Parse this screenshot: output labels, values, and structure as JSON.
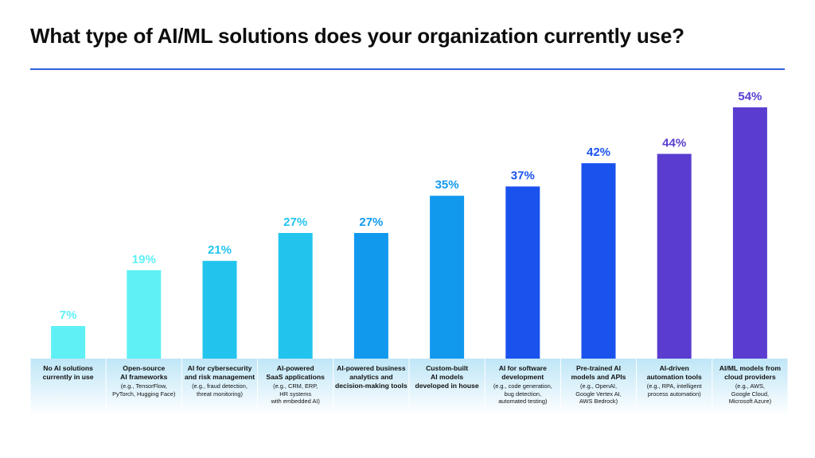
{
  "title": "What type of AI/ML solutions does your organization currently use?",
  "colors": {
    "rule": "#2f5fe0",
    "label_band_top": "#bfe6f7",
    "label_band_bottom": "#ffffff"
  },
  "chart_data": {
    "type": "bar",
    "ylim": [
      0,
      54
    ],
    "grid": false,
    "legend": "none",
    "value_suffix": "%",
    "categories": [
      {
        "label": "No AI solutions\ncurrently in use",
        "sub": ""
      },
      {
        "label": "Open-source\nAI frameworks",
        "sub": "(e.g., TensorFlow,\nPyTorch, Hugging Face)"
      },
      {
        "label": "AI for cybersecurity\nand risk management",
        "sub": "(e.g., fraud detection,\nthreat monitoring)"
      },
      {
        "label": "AI-powered\nSaaS applications",
        "sub": "(e.g., CRM, ERP,\nHR systems\nwith embedded AI)"
      },
      {
        "label": "AI-powered business\nanalytics and\ndecision-making tools",
        "sub": ""
      },
      {
        "label": "Custom-built\nAI models\ndeveloped in house",
        "sub": ""
      },
      {
        "label": "AI for software\ndevelopment",
        "sub": "(e.g., code generation,\nbug detection,\nautomated testing)"
      },
      {
        "label": "Pre-trained AI\nmodels and APIs",
        "sub": "(e.g., OpenAI,\nGoogle Vertex AI,\nAWS Bedrock)"
      },
      {
        "label": "AI-driven\nautomation tools",
        "sub": "(e.g., RPA, intelligent\nprocess automation)"
      },
      {
        "label": "AI/ML models from\ncloud providers",
        "sub": "(e.g., AWS,\nGoogle Cloud,\nMicrosoft Azure)"
      }
    ],
    "values": [
      7,
      19,
      21,
      27,
      27,
      35,
      37,
      42,
      44,
      54
    ],
    "bar_colors": [
      "#5ef0f5",
      "#5ef0f5",
      "#22c4ee",
      "#22c4ee",
      "#1199ee",
      "#1199ee",
      "#1a52ee",
      "#1a52ee",
      "#5a3dd0",
      "#5a3dd0"
    ]
  }
}
